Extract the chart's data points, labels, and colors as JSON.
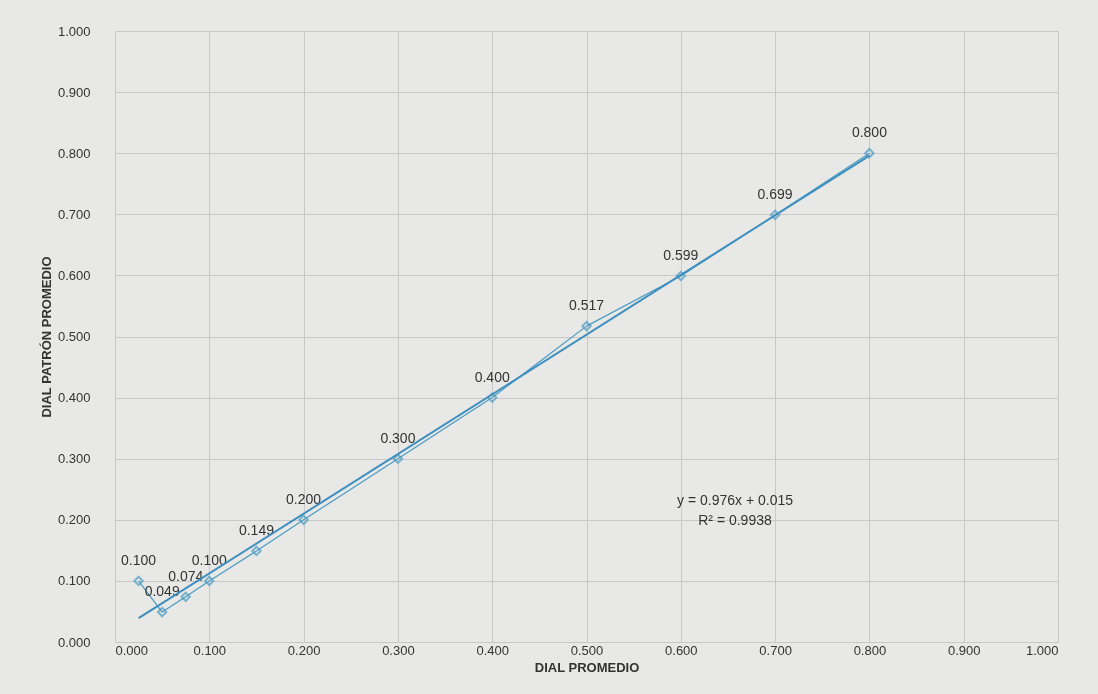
{
  "chart_data": {
    "type": "line",
    "xlabel": "DIAL PROMEDIO",
    "ylabel": "DIAL PATRÓN PROMEDIO",
    "x": [
      0.025,
      0.05,
      0.075,
      0.1,
      0.15,
      0.2,
      0.3,
      0.4,
      0.5,
      0.6,
      0.7,
      0.8
    ],
    "series": [
      {
        "color": "#4a9bc2",
        "marker": "diamond",
        "values": [
          0.1,
          0.049,
          0.074,
          0.1,
          0.149,
          0.2,
          0.3,
          0.4,
          0.517,
          0.599,
          0.699,
          0.8
        ],
        "value_labels": [
          "0.100",
          "0.049",
          "0.074",
          "0.100",
          "0.149",
          "0.200",
          "0.300",
          "0.400",
          "0.517",
          "0.599",
          "0.699",
          "0.800"
        ]
      },
      {
        "color": "#3d8fbf",
        "marker": "none",
        "x": [
          0.025,
          0.8
        ],
        "values": [
          0.039,
          0.796
        ]
      }
    ],
    "xlim": [
      0,
      1
    ],
    "ylim": [
      0,
      1
    ],
    "xticks": [
      {
        "value": 0,
        "label": "0.000"
      },
      {
        "value": 0.1,
        "label": "0.100"
      },
      {
        "value": 0.2,
        "label": "0.200"
      },
      {
        "value": 0.3,
        "label": "0.300"
      },
      {
        "value": 0.4,
        "label": "0.400"
      },
      {
        "value": 0.5,
        "label": "0.500"
      },
      {
        "value": 0.6,
        "label": "0.600"
      },
      {
        "value": 0.7,
        "label": "0.700"
      },
      {
        "value": 0.8,
        "label": "0.800"
      },
      {
        "value": 0.9,
        "label": "0.900"
      },
      {
        "value": 1,
        "label": "1.000"
      }
    ],
    "yticks": [
      {
        "value": 0,
        "label": "0.000"
      },
      {
        "value": 0.1,
        "label": "0.100"
      },
      {
        "value": 0.2,
        "label": "0.200"
      },
      {
        "value": 0.3,
        "label": "0.300"
      },
      {
        "value": 0.4,
        "label": "0.400"
      },
      {
        "value": 0.5,
        "label": "0.500"
      },
      {
        "value": 0.6,
        "label": "0.600"
      },
      {
        "value": 0.7,
        "label": "0.700"
      },
      {
        "value": 0.8,
        "label": "0.800"
      },
      {
        "value": 0.9,
        "label": "0.900"
      },
      {
        "value": 1,
        "label": "1.000"
      }
    ],
    "grid": true,
    "annotations": [
      "y = 0.976x + 0.015",
      "R² = 0.9938"
    ]
  }
}
